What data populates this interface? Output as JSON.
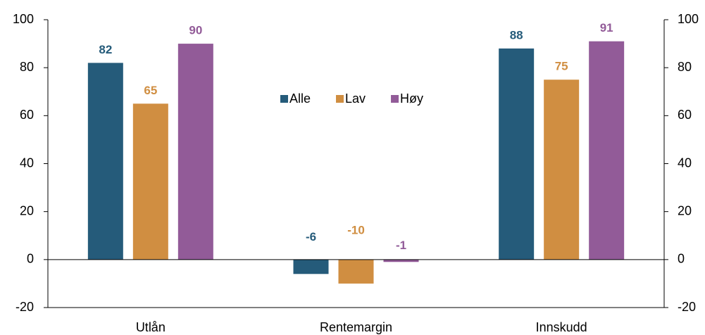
{
  "chart_data": {
    "type": "bar",
    "categories": [
      "Utlån",
      "Rentemargin",
      "Innskudd"
    ],
    "series": [
      {
        "name": "Alle",
        "color": "#255b7a",
        "values": [
          82,
          -6,
          88
        ]
      },
      {
        "name": "Lav",
        "color": "#d08e41",
        "values": [
          65,
          -10,
          75
        ]
      },
      {
        "name": "Høy",
        "color": "#925b98",
        "values": [
          90,
          -1,
          91
        ]
      }
    ],
    "ylim": [
      -20,
      100
    ],
    "yticks": [
      -20,
      0,
      20,
      40,
      60,
      80,
      100
    ],
    "y2lim": [
      -20,
      100
    ],
    "y2ticks": [
      -20,
      0,
      20,
      40,
      60,
      80,
      100
    ],
    "legend": "center",
    "grid": false
  }
}
